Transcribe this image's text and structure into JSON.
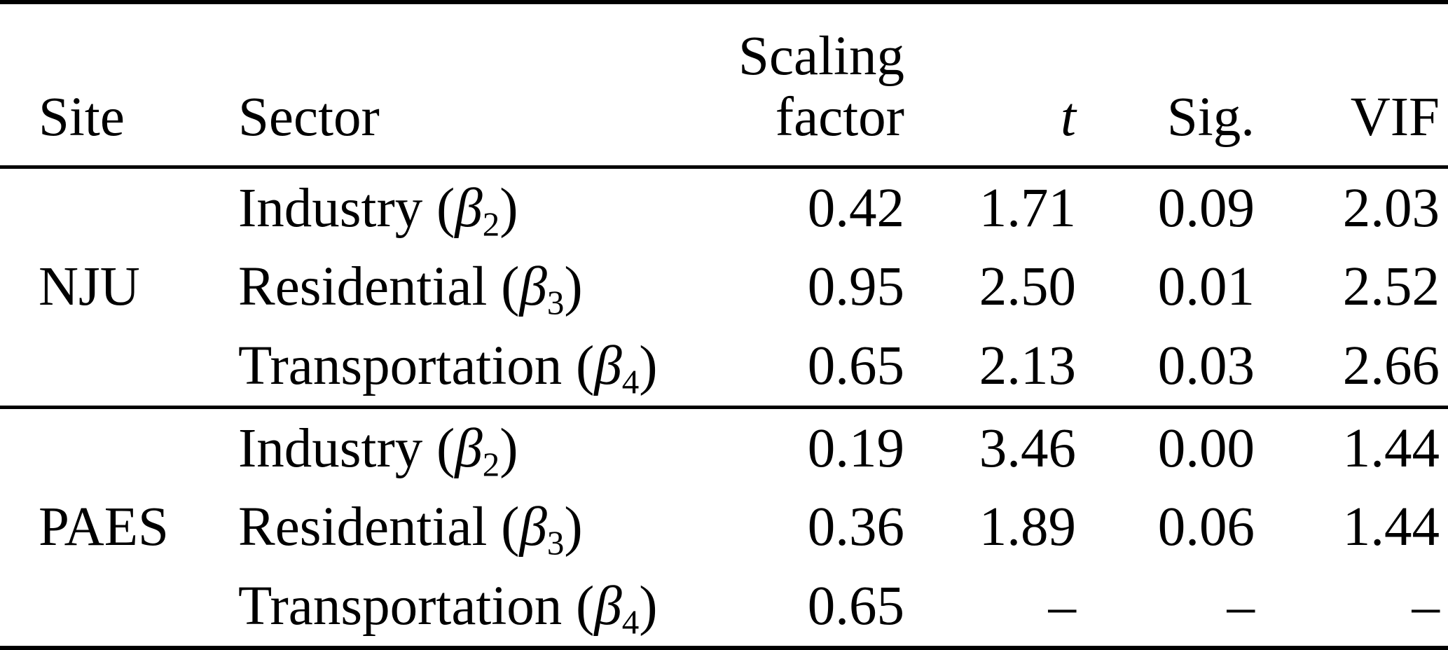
{
  "page": {
    "background_color": "#ffffff",
    "text_color": "#000000",
    "rule_color": "#000000"
  },
  "table": {
    "headers": {
      "site": "Site",
      "sector": "Sector",
      "scaling_line1": "Scaling",
      "scaling_line2": "factor",
      "t": "t",
      "sig": "Sig.",
      "vif": "VIF"
    },
    "groups": [
      {
        "site": "NJU",
        "rows": [
          {
            "sector_prefix": "Industry (",
            "beta": "β",
            "beta_sub": "2",
            "sector_suffix": ")",
            "scaling_factor": "0.42",
            "t": "1.71",
            "sig": "0.09",
            "vif": "2.03"
          },
          {
            "sector_prefix": "Residential (",
            "beta": "β",
            "beta_sub": "3",
            "sector_suffix": ")",
            "scaling_factor": "0.95",
            "t": "2.50",
            "sig": "0.01",
            "vif": "2.52"
          },
          {
            "sector_prefix": "Transportation (",
            "beta": "β",
            "beta_sub": "4",
            "sector_suffix": ")",
            "scaling_factor": "0.65",
            "t": "2.13",
            "sig": "0.03",
            "vif": "2.66"
          }
        ]
      },
      {
        "site": "PAES",
        "rows": [
          {
            "sector_prefix": "Industry (",
            "beta": "β",
            "beta_sub": "2",
            "sector_suffix": ")",
            "scaling_factor": "0.19",
            "t": "3.46",
            "sig": "0.00",
            "vif": "1.44"
          },
          {
            "sector_prefix": "Residential (",
            "beta": "β",
            "beta_sub": "3",
            "sector_suffix": ")",
            "scaling_factor": "0.36",
            "t": "1.89",
            "sig": "0.06",
            "vif": "1.44"
          },
          {
            "sector_prefix": "Transportation (",
            "beta": "β",
            "beta_sub": "4",
            "sector_suffix": ")",
            "scaling_factor": "0.65",
            "t": "–",
            "sig": "–",
            "vif": "–"
          }
        ]
      }
    ]
  }
}
